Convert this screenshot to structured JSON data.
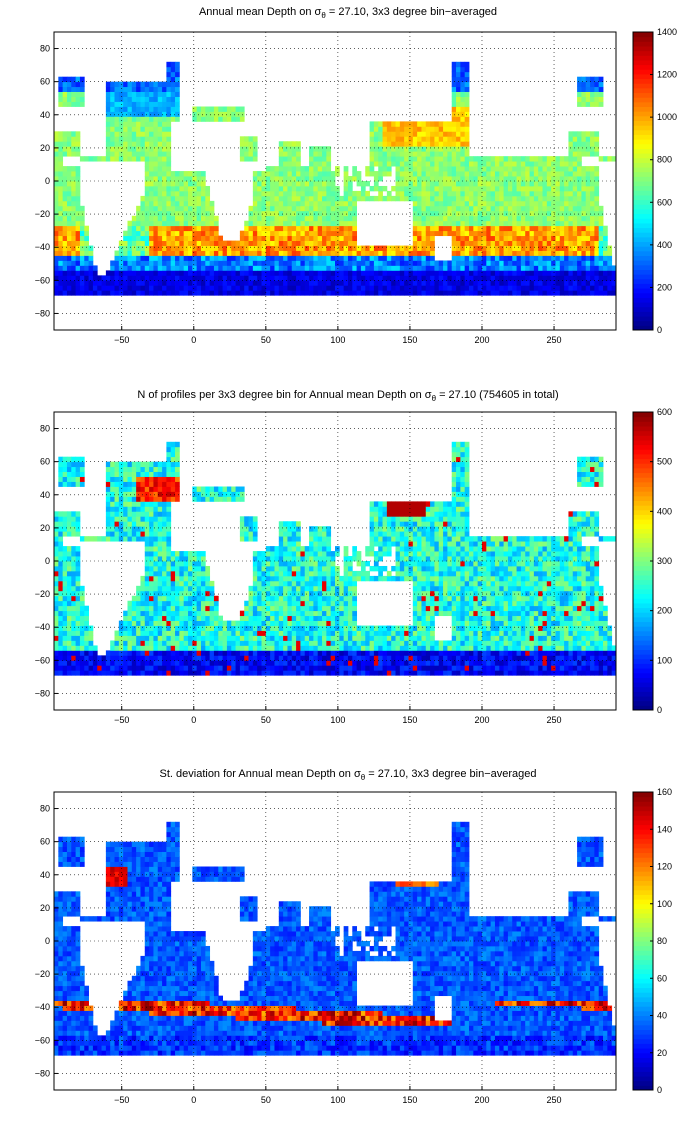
{
  "colors": {
    "background": "#ffffff",
    "land": "#ffffff",
    "coast": "#000000",
    "grid": "#000000"
  },
  "colormap": "jet",
  "chart_data": [
    {
      "type": "heatmap",
      "title_pre": "Annual mean Depth on ",
      "title_sym": "σ",
      "title_sub": "θ",
      "title_post": " = 27.10, 3x3 degree bin−averaged",
      "x_ticks": [
        "−50",
        "0",
        "50",
        "100",
        "150",
        "200",
        "250"
      ],
      "x_tick_values": [
        -50,
        0,
        50,
        100,
        150,
        200,
        250
      ],
      "y_ticks": [
        "80",
        "60",
        "40",
        "20",
        "0",
        "−20",
        "−40",
        "−60",
        "−80"
      ],
      "y_tick_values": [
        80,
        60,
        40,
        20,
        0,
        -20,
        -40,
        -60,
        -80
      ],
      "xlim": [
        -97,
        293
      ],
      "ylim": [
        -90,
        90
      ],
      "grid": true,
      "colorbar": {
        "min": 0,
        "max": 1400,
        "ticks": [
          "0",
          "200",
          "400",
          "600",
          "800",
          "1000",
          "1200",
          "1400"
        ],
        "tick_values": [
          0,
          200,
          400,
          600,
          800,
          1000,
          1200,
          1400
        ]
      }
    },
    {
      "type": "heatmap",
      "title_pre": "N of profiles per 3x3 degree bin for Annual mean Depth on ",
      "title_sym": "σ",
      "title_sub": "θ",
      "title_post": " = 27.10 (754605 in total)",
      "x_ticks": [
        "−50",
        "0",
        "50",
        "100",
        "150",
        "200",
        "250"
      ],
      "x_tick_values": [
        -50,
        0,
        50,
        100,
        150,
        200,
        250
      ],
      "y_ticks": [
        "80",
        "60",
        "40",
        "20",
        "0",
        "−20",
        "−40",
        "−60",
        "−80"
      ],
      "y_tick_values": [
        80,
        60,
        40,
        20,
        0,
        -20,
        -40,
        -60,
        -80
      ],
      "xlim": [
        -97,
        293
      ],
      "ylim": [
        -90,
        90
      ],
      "grid": true,
      "colorbar": {
        "min": 0,
        "max": 600,
        "ticks": [
          "0",
          "100",
          "200",
          "300",
          "400",
          "500",
          "600"
        ],
        "tick_values": [
          0,
          100,
          200,
          300,
          400,
          500,
          600
        ]
      }
    },
    {
      "type": "heatmap",
      "title_pre": "St. deviation for Annual mean Depth on ",
      "title_sym": "σ",
      "title_sub": "θ",
      "title_post": " = 27.10, 3x3 degree bin−averaged",
      "x_ticks": [
        "−50",
        "0",
        "50",
        "100",
        "150",
        "200",
        "250"
      ],
      "x_tick_values": [
        -50,
        0,
        50,
        100,
        150,
        200,
        250
      ],
      "y_ticks": [
        "80",
        "60",
        "40",
        "20",
        "0",
        "−20",
        "−40",
        "−60",
        "−80"
      ],
      "y_tick_values": [
        80,
        60,
        40,
        20,
        0,
        -20,
        -40,
        -60,
        -80
      ],
      "xlim": [
        -97,
        293
      ],
      "ylim": [
        -90,
        90
      ],
      "grid": true,
      "colorbar": {
        "min": 0,
        "max": 160,
        "ticks": [
          "0",
          "20",
          "40",
          "60",
          "80",
          "100",
          "120",
          "140",
          "160"
        ],
        "tick_values": [
          0,
          20,
          40,
          60,
          80,
          100,
          120,
          140,
          160
        ]
      }
    }
  ]
}
